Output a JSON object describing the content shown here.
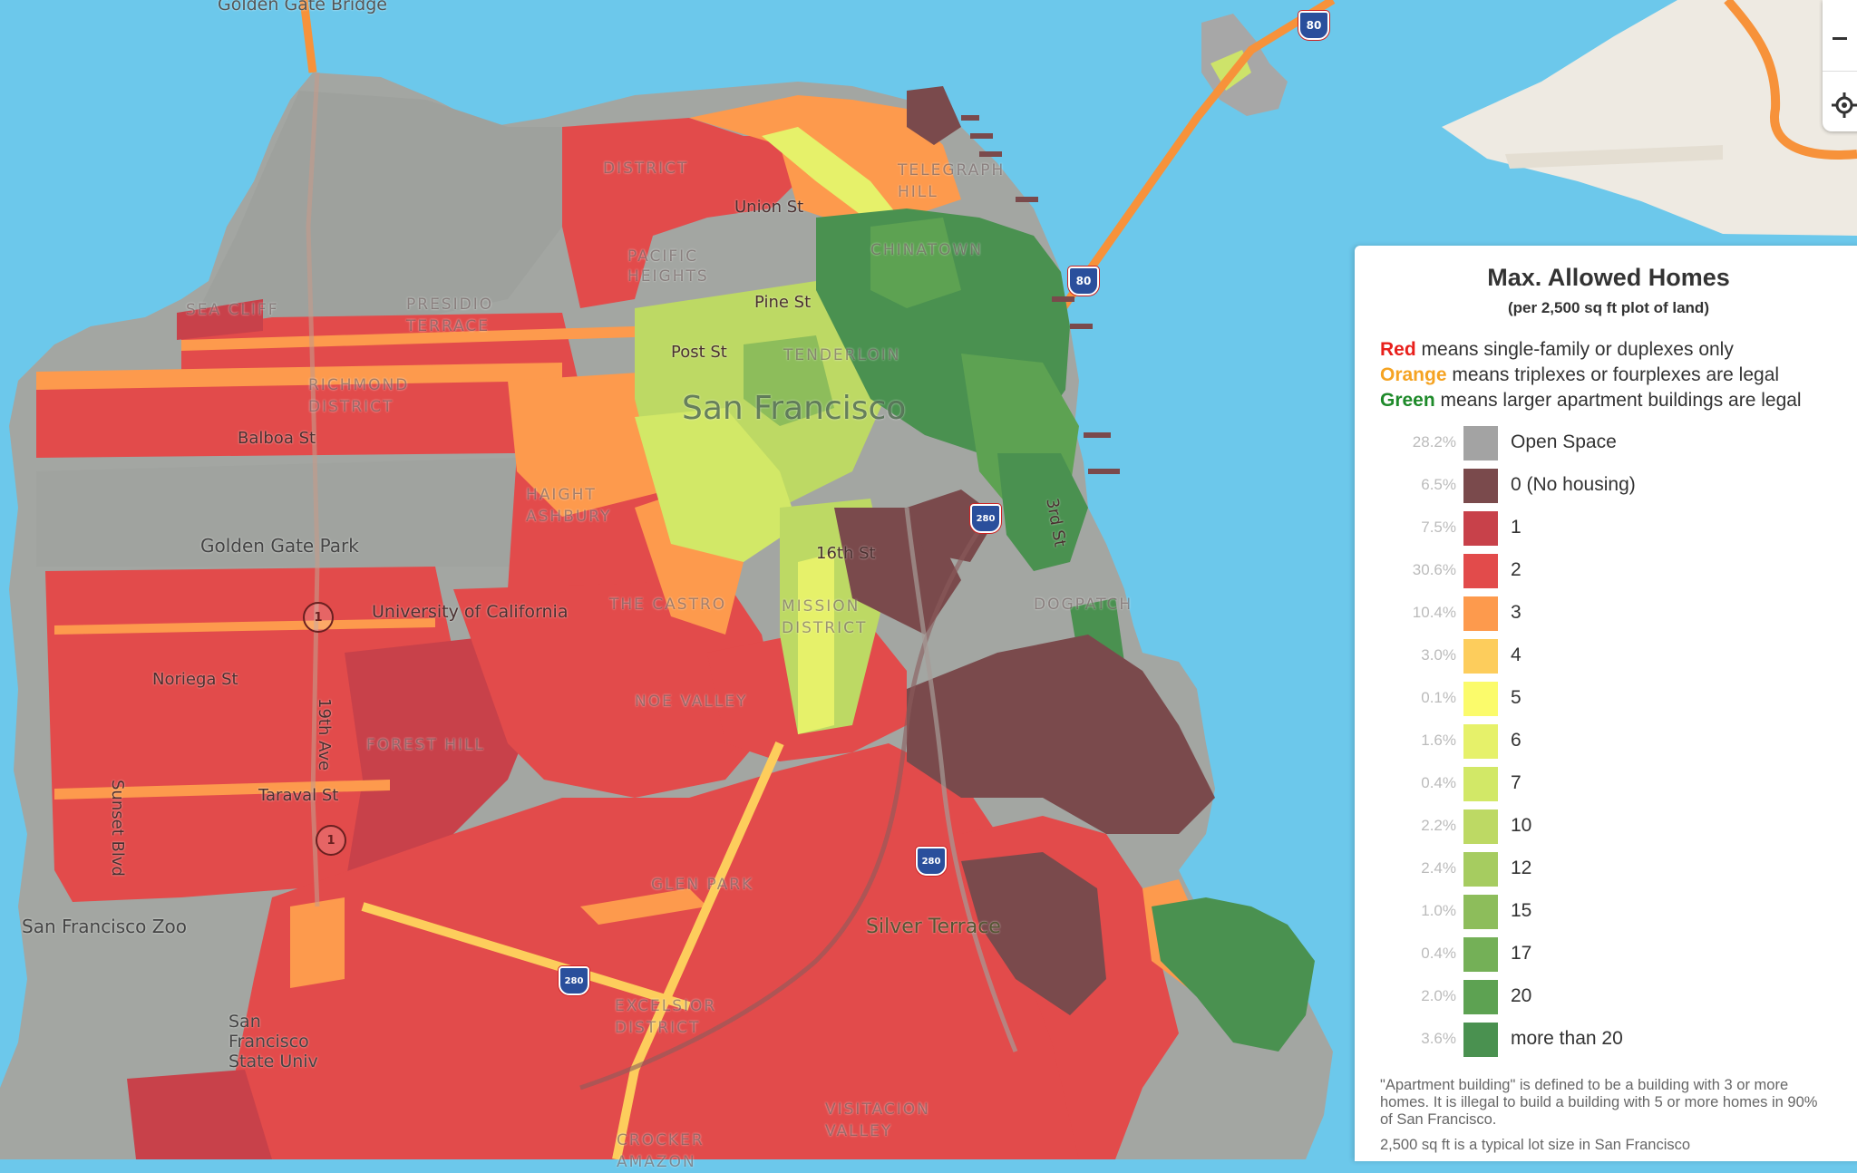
{
  "map": {
    "labels": [
      {
        "id": "golden-gate-bridge",
        "text": "Golden Gate Bridge"
      },
      {
        "id": "sea-cliff",
        "text": "SEA CLIFF"
      },
      {
        "id": "presidio-terrace",
        "text": "PRESIDIO TERRACE"
      },
      {
        "id": "richmond-district",
        "text": "RICHMOND DISTRICT"
      },
      {
        "id": "balboa-st",
        "text": "Balboa St"
      },
      {
        "id": "golden-gate-park",
        "text": "Golden Gate Park"
      },
      {
        "id": "university-of-california",
        "text": "University of California"
      },
      {
        "id": "noriega-st",
        "text": "Noriega St"
      },
      {
        "id": "sunset-blvd",
        "text": "Sunset Blvd"
      },
      {
        "id": "19th-ave",
        "text": "19th Ave"
      },
      {
        "id": "forest-hill",
        "text": "FOREST HILL"
      },
      {
        "id": "taraval-st",
        "text": "Taraval St"
      },
      {
        "id": "san-francisco-zoo",
        "text": "San Francisco Zoo"
      },
      {
        "id": "san-francisco-state",
        "text": "San Francisco State Univ"
      },
      {
        "id": "san-francisco",
        "text": "San Francisco"
      },
      {
        "id": "pacific-heights",
        "text": "PACIFIC HEIGHTS"
      },
      {
        "id": "marina-district",
        "text": "DISTRICT"
      },
      {
        "id": "telegraph-hill",
        "text": "TELEGRAPH HILL"
      },
      {
        "id": "union-st",
        "text": "Union St"
      },
      {
        "id": "chinatown",
        "text": "CHINATOWN"
      },
      {
        "id": "pine-st",
        "text": "Pine St"
      },
      {
        "id": "post-st",
        "text": "Post St"
      },
      {
        "id": "tenderloin",
        "text": "TENDERLOIN"
      },
      {
        "id": "haight-ashbury",
        "text": "HAIGHT ASHBURY"
      },
      {
        "id": "the-castro",
        "text": "THE CASTRO"
      },
      {
        "id": "mission-district",
        "text": "MISSION DISTRICT"
      },
      {
        "id": "noe-valley",
        "text": "NOE VALLEY"
      },
      {
        "id": "16th-st",
        "text": "16th St"
      },
      {
        "id": "3rd-st",
        "text": "3rd St"
      },
      {
        "id": "dogpatch",
        "text": "DOGPATCH"
      },
      {
        "id": "glen-park",
        "text": "GLEN PARK"
      },
      {
        "id": "silver-terrace",
        "text": "Silver Terrace"
      },
      {
        "id": "excelsior-district",
        "text": "EXCELSIOR DISTRICT"
      },
      {
        "id": "visitacion-valley",
        "text": "VISITACION VALLEY"
      },
      {
        "id": "crocker-amazon",
        "text": "CROCKER AMAZON"
      }
    ],
    "shields": [
      {
        "id": "i80-a",
        "text": "80",
        "kind": "interstate"
      },
      {
        "id": "i80-b",
        "text": "80",
        "kind": "interstate"
      },
      {
        "id": "i280-a",
        "text": "280",
        "kind": "interstate"
      },
      {
        "id": "i280-b",
        "text": "280",
        "kind": "interstate"
      },
      {
        "id": "i280-c",
        "text": "280",
        "kind": "interstate"
      },
      {
        "id": "r1-a",
        "text": "1",
        "kind": "route"
      },
      {
        "id": "r1-b",
        "text": "1",
        "kind": "route"
      }
    ]
  },
  "legend": {
    "title": "Max. Allowed Homes",
    "subtitle": "(per 2,500 sq ft plot of land)",
    "descriptions": [
      {
        "key": "Red",
        "rest": " means single-family or duplexes only",
        "color": "#e8201c"
      },
      {
        "key": "Orange",
        "rest": " means triplexes or fourplexes are legal",
        "color": "#f5a322"
      },
      {
        "key": "Green",
        "rest": " means larger apartment buildings are legal",
        "color": "#1e8a2a"
      }
    ],
    "items": [
      {
        "pct": "28.2%",
        "label": "Open Space",
        "color": "#a3a3a3"
      },
      {
        "pct": "6.5%",
        "label": "0 (No housing)",
        "color": "#7a4a4c"
      },
      {
        "pct": "7.5%",
        "label": "1",
        "color": "#c8414a"
      },
      {
        "pct": "30.6%",
        "label": "2",
        "color": "#e24b4b"
      },
      {
        "pct": "10.4%",
        "label": "3",
        "color": "#fd9a4d"
      },
      {
        "pct": "3.0%",
        "label": "4",
        "color": "#fdcd5c"
      },
      {
        "pct": "0.1%",
        "label": "5",
        "color": "#fbfb6b"
      },
      {
        "pct": "1.6%",
        "label": "6",
        "color": "#e6f16a"
      },
      {
        "pct": "0.4%",
        "label": "7",
        "color": "#d2e867"
      },
      {
        "pct": "2.2%",
        "label": "10",
        "color": "#bdd964"
      },
      {
        "pct": "2.4%",
        "label": "12",
        "color": "#a6cc60"
      },
      {
        "pct": "1.0%",
        "label": "15",
        "color": "#8dbd5b"
      },
      {
        "pct": "0.4%",
        "label": "17",
        "color": "#74b057"
      },
      {
        "pct": "2.0%",
        "label": "20",
        "color": "#5da252"
      },
      {
        "pct": "3.6%",
        "label": "more than 20",
        "color": "#4a9150"
      }
    ],
    "note1": "\"Apartment building\" is defined to be a building with 3 or more homes. It is illegal to build a building with 5 or more homes in 90% of San Francisco.",
    "note2": "2,500 sq ft is a typical lot size in San Francisco"
  },
  "controls": {
    "zoom_out_icon": "minus-icon",
    "locate_icon": "locate-icon"
  }
}
